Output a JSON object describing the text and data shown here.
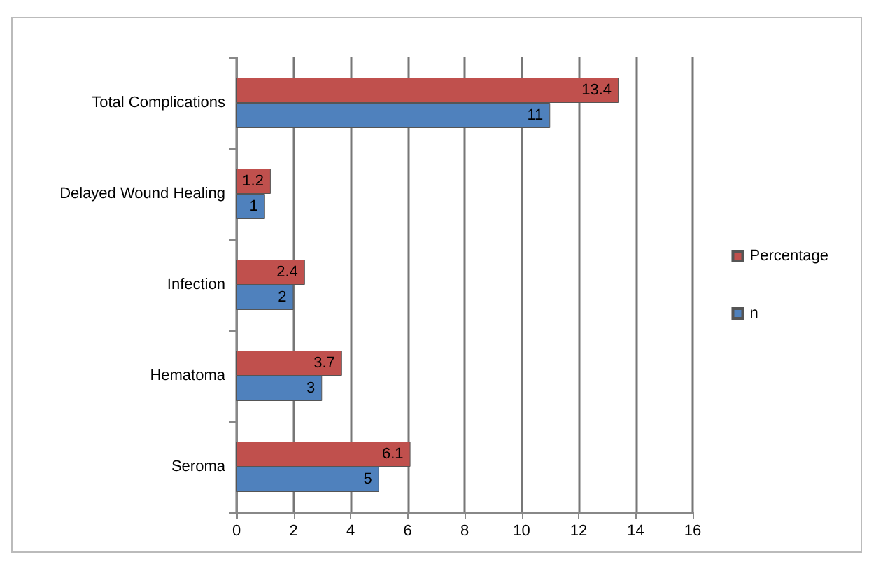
{
  "chart_data": {
    "type": "bar",
    "orientation": "horizontal",
    "categories": [
      "Total Complications",
      "Delayed Wound Healing",
      "Infection",
      "Hematoma",
      "Seroma"
    ],
    "series": [
      {
        "name": "Percentage",
        "color": "#c0504d",
        "values": [
          13.4,
          1.2,
          2.4,
          3.7,
          6.1
        ]
      },
      {
        "name": "n",
        "color": "#4f81bd",
        "values": [
          11,
          1,
          2,
          3,
          5
        ]
      }
    ],
    "xlim": [
      0,
      16
    ],
    "xticks": [
      0,
      2,
      4,
      6,
      8,
      10,
      12,
      14,
      16
    ],
    "grid": "x",
    "legend": "right",
    "data_labels": true
  }
}
